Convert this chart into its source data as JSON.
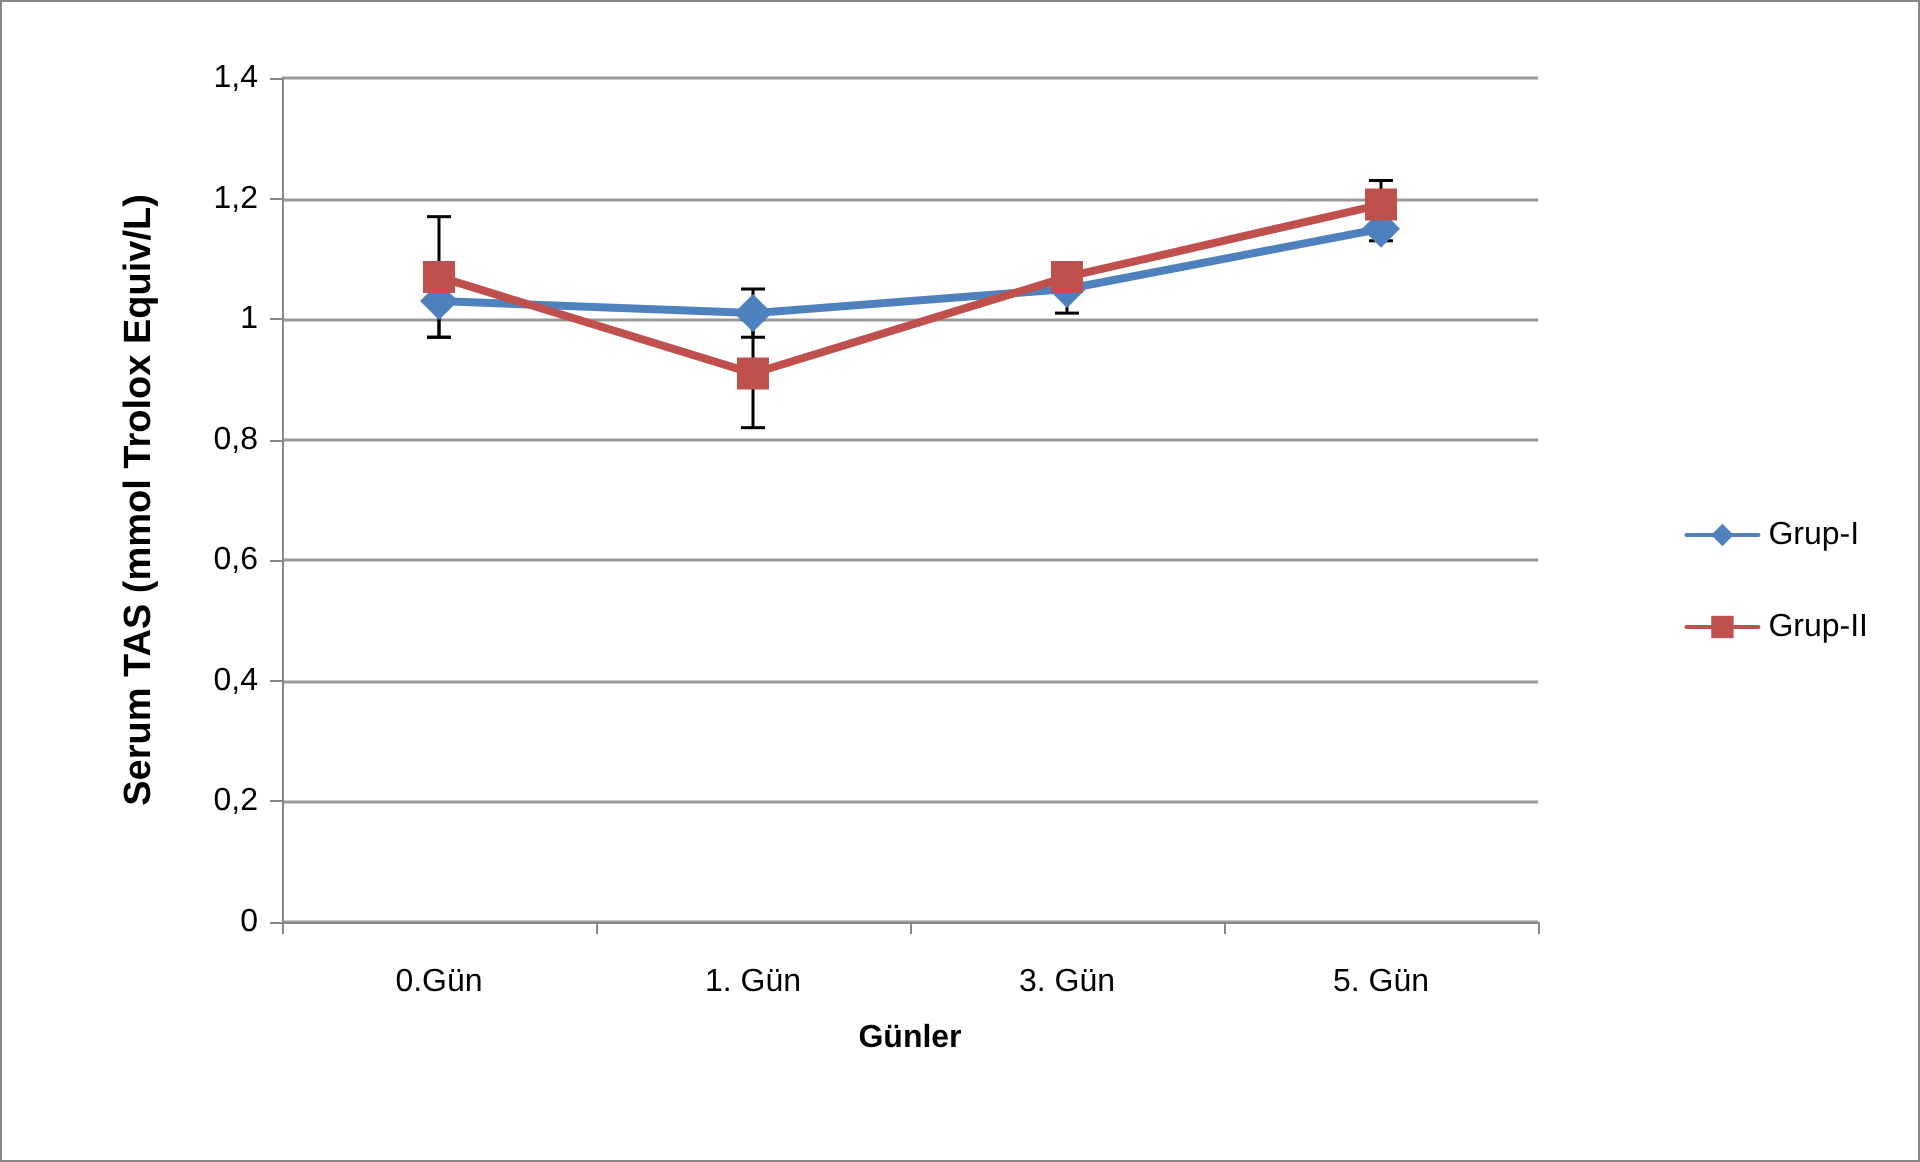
{
  "chart_data": {
    "type": "line",
    "xlabel": "Günler",
    "ylabel": "Serum TAS (mmol Trolox Equiv/L)",
    "categories": [
      "0.Gün",
      "1. Gün",
      "3. Gün",
      "5. Gün"
    ],
    "series": [
      {
        "name": "Grup-I",
        "color": "#4f81bd",
        "marker": "diamond",
        "values": [
          1.03,
          1.01,
          1.05,
          1.15
        ],
        "errors": [
          0.06,
          0.04,
          0.04,
          0.02
        ]
      },
      {
        "name": "Grup-II",
        "color": "#c0504d",
        "marker": "square",
        "values": [
          1.07,
          0.91,
          1.07,
          1.19
        ],
        "errors": [
          0.1,
          0.09,
          null,
          0.04
        ]
      }
    ],
    "ylim": [
      0,
      1.4
    ],
    "yticks": [
      0,
      {
        "value": 0.2,
        "label": "0,2"
      },
      {
        "value": 0.4,
        "label": "0,4"
      },
      {
        "value": 0.6,
        "label": "0,6"
      },
      {
        "value": 0.8,
        "label": "0,8"
      },
      1,
      {
        "value": 1.2,
        "label": "1,2"
      },
      {
        "value": 1.4,
        "label": "1,4"
      }
    ],
    "grid": "y",
    "legend": "right",
    "line_style": "solid"
  }
}
